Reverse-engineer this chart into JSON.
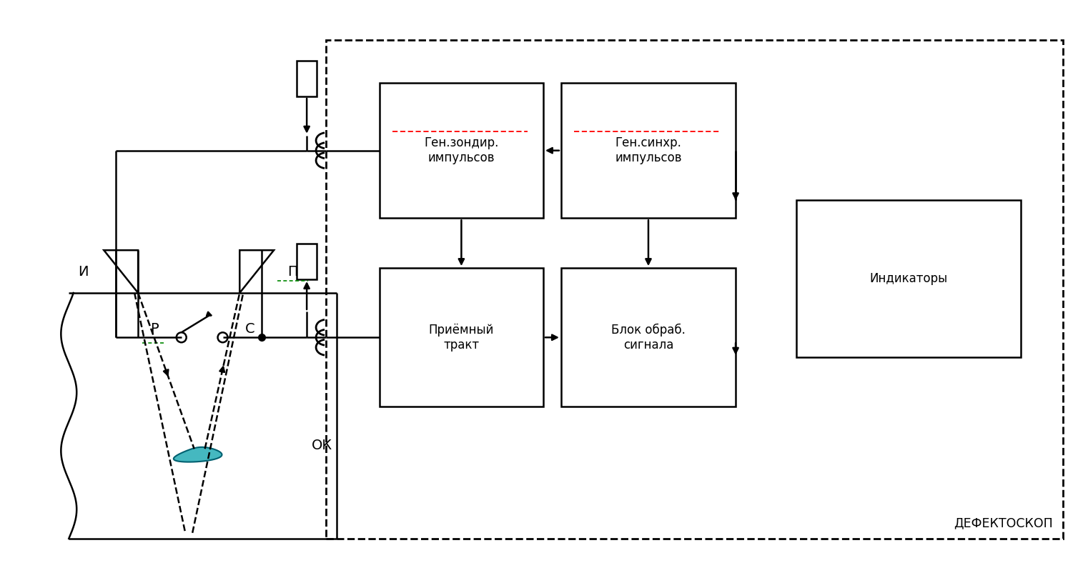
{
  "bg_color": "#ffffff",
  "lc": "#000000",
  "lw": 1.8,
  "box1_label": "Ген.зондир.\nимпульсов",
  "box2_label": "Ген.синхр.\nимпульсов",
  "box3_label": "Приёмный\nтракт",
  "box4_label": "Блок обраб.\nсигнала",
  "box5_label": "Индикаторы",
  "defectoscop_label": "ДЕФЕКТОСКОП",
  "label_P": "Р",
  "label_C": "С",
  "label_I": "И",
  "label_P2": "П",
  "label_OK": "ОК",
  "teal_color": "#45b8c0",
  "teal_edge": "#006070",
  "red_color": "#ff0000",
  "green_color": "#008800"
}
